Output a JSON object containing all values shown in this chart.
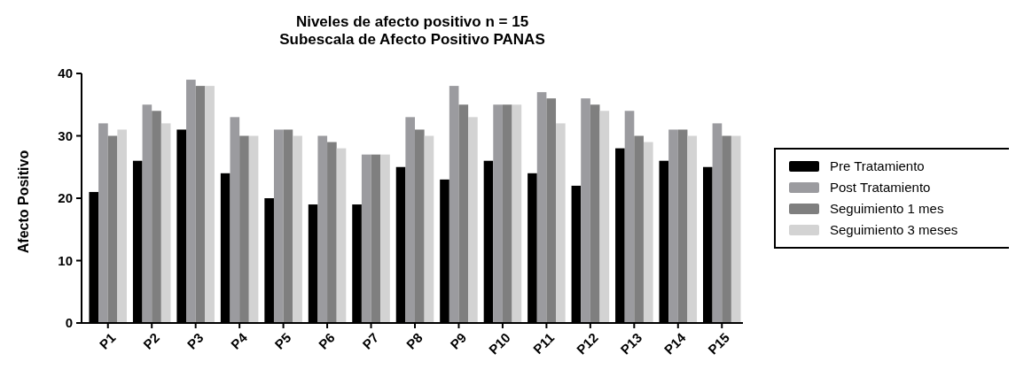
{
  "chart_data": {
    "type": "bar",
    "title": "Niveles de afecto positivo n = 15\nSubescala de Afecto Positivo PANAS",
    "ylabel": "Afecto Positivo",
    "categories": [
      "P1",
      "P2",
      "P3",
      "P4",
      "P5",
      "P6",
      "P7",
      "P8",
      "P9",
      "P10",
      "P11",
      "P12",
      "P13",
      "P14",
      "P15"
    ],
    "series": [
      {
        "name": "Pre Tratamiento",
        "color": "#000000",
        "values": [
          21,
          26,
          31,
          24,
          20,
          19,
          19,
          25,
          23,
          26,
          24,
          22,
          28,
          26,
          25
        ]
      },
      {
        "name": "Post Tratamiento",
        "color": "#9b9b9f",
        "values": [
          32,
          35,
          39,
          33,
          31,
          30,
          27,
          33,
          38,
          35,
          37,
          36,
          34,
          31,
          32
        ]
      },
      {
        "name": "Seguimiento 1 mes",
        "color": "#7f7f7f",
        "values": [
          30,
          34,
          38,
          30,
          31,
          29,
          27,
          31,
          35,
          35,
          36,
          35,
          30,
          31,
          30
        ]
      },
      {
        "name": "Seguimiento 3 meses",
        "color": "#d3d3d3",
        "values": [
          31,
          32,
          38,
          30,
          30,
          28,
          27,
          30,
          33,
          35,
          32,
          34,
          29,
          30,
          30
        ]
      }
    ],
    "ylim": [
      0,
      40
    ],
    "yticks": [
      0,
      10,
      20,
      30,
      40
    ],
    "legend": "right",
    "grid": false
  }
}
